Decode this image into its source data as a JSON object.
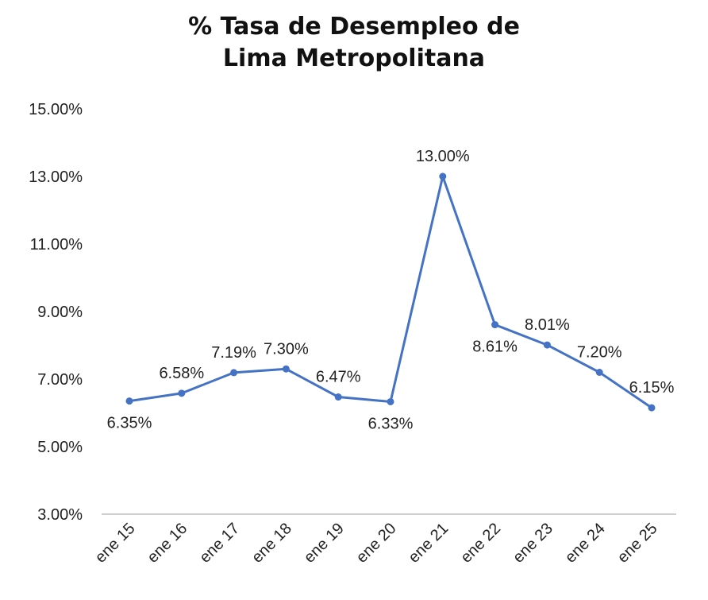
{
  "chart_data": {
    "type": "line",
    "title_line1": "% Tasa de Desempleo de",
    "title_line2": "Lima Metropolitana",
    "categories": [
      "ene 15",
      "ene 16",
      "ene 17",
      "ene 18",
      "ene 19",
      "ene 20",
      "ene 21",
      "ene 22",
      "ene 23",
      "ene 24",
      "ene 25"
    ],
    "values": [
      6.35,
      6.58,
      7.19,
      7.3,
      6.47,
      6.33,
      13.0,
      8.61,
      8.01,
      7.2,
      6.15
    ],
    "data_labels": [
      "6.35%",
      "6.58%",
      "7.19%",
      "7.30%",
      "6.47%",
      "6.33%",
      "13.00%",
      "8.61%",
      "8.01%",
      "7.20%",
      "6.15%"
    ],
    "label_positions": [
      "below",
      "above",
      "above",
      "above",
      "above",
      "below",
      "above",
      "below",
      "above",
      "above",
      "above"
    ],
    "y_ticks": [
      "3.00%",
      "5.00%",
      "7.00%",
      "9.00%",
      "11.00%",
      "13.00%",
      "15.00%"
    ],
    "ylim": [
      3,
      15
    ],
    "grid": false,
    "series_color": "#4472C4",
    "axis_color": "#BFBFBF"
  }
}
